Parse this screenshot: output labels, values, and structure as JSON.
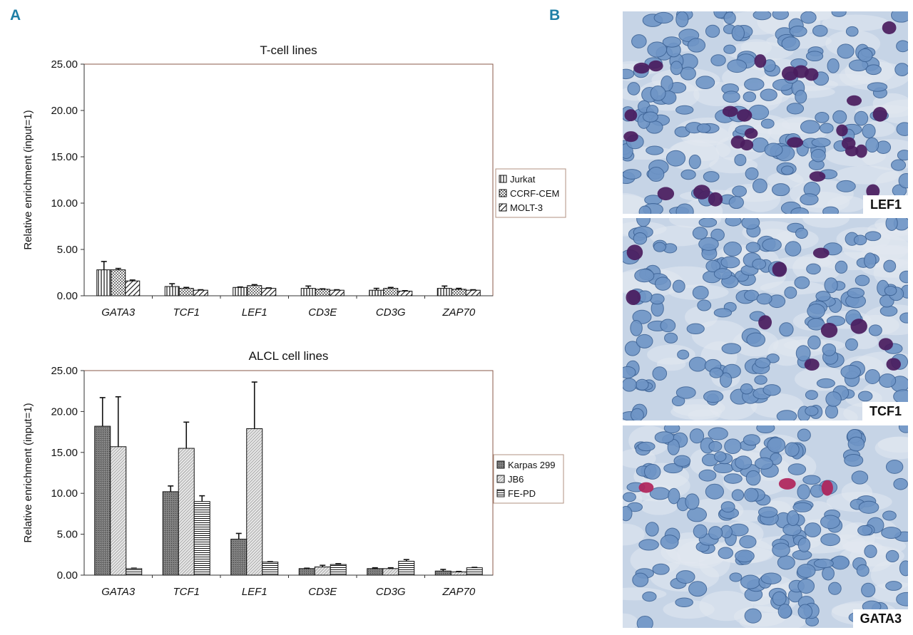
{
  "panels": {
    "a_letter": "A",
    "b_letter": "B"
  },
  "chart_data": [
    {
      "type": "bar",
      "title": "T-cell lines",
      "ylabel": "Relative enrichment (input=1)",
      "xlabel": "",
      "ylim": [
        0,
        25
      ],
      "yticks": [
        "0.00",
        "5.00",
        "10.00",
        "15.00",
        "20.00",
        "25.00"
      ],
      "categories": [
        "GATA3",
        "TCF1",
        "LEF1",
        "CD3E",
        "CD3G",
        "ZAP70"
      ],
      "series": [
        {
          "name": "Jurkat",
          "pattern": "vertical-lines",
          "values": [
            2.8,
            1.0,
            0.9,
            0.8,
            0.6,
            0.8
          ],
          "errors": [
            0.9,
            0.3,
            0.05,
            0.25,
            0.2,
            0.25
          ]
        },
        {
          "name": "CCRF-CEM",
          "pattern": "dots",
          "values": [
            2.8,
            0.8,
            1.1,
            0.7,
            0.8,
            0.7
          ],
          "errors": [
            0.15,
            0.1,
            0.1,
            0.05,
            0.1,
            0.1
          ]
        },
        {
          "name": "MOLT-3",
          "pattern": "diagonal-lines",
          "values": [
            1.6,
            0.6,
            0.8,
            0.6,
            0.5,
            0.6
          ],
          "errors": [
            0.1,
            0.05,
            0.05,
            0.05,
            0.05,
            0.05
          ]
        }
      ],
      "legend_position": "right"
    },
    {
      "type": "bar",
      "title": "ALCL cell lines",
      "ylabel": "Relative enrichment (input=1)",
      "xlabel": "",
      "ylim": [
        0,
        25
      ],
      "yticks": [
        "0.00",
        "5.00",
        "10.00",
        "15.00",
        "20.00",
        "25.00"
      ],
      "categories": [
        "GATA3",
        "TCF1",
        "LEF1",
        "CD3E",
        "CD3G",
        "ZAP70"
      ],
      "series": [
        {
          "name": "Karpas 299",
          "pattern": "dark-crosshatch",
          "values": [
            18.2,
            10.2,
            4.4,
            0.8,
            0.8,
            0.5
          ],
          "errors": [
            3.5,
            0.7,
            0.7,
            0.05,
            0.1,
            0.2
          ]
        },
        {
          "name": "JB6",
          "pattern": "light-diagonal",
          "values": [
            15.7,
            15.5,
            17.9,
            1.0,
            0.8,
            0.4
          ],
          "errors": [
            6.1,
            3.2,
            5.7,
            0.2,
            0.1,
            0.05
          ]
        },
        {
          "name": "FE-PD",
          "pattern": "horizontal-lines",
          "values": [
            0.8,
            9.0,
            1.6,
            1.3,
            1.7,
            0.9
          ],
          "errors": [
            0.05,
            0.7,
            0.05,
            0.1,
            0.2,
            0.05
          ]
        }
      ],
      "legend_position": "right"
    }
  ],
  "micrographs": [
    {
      "label": "LEF1"
    },
    {
      "label": "TCF1"
    },
    {
      "label": "GATA3"
    }
  ]
}
